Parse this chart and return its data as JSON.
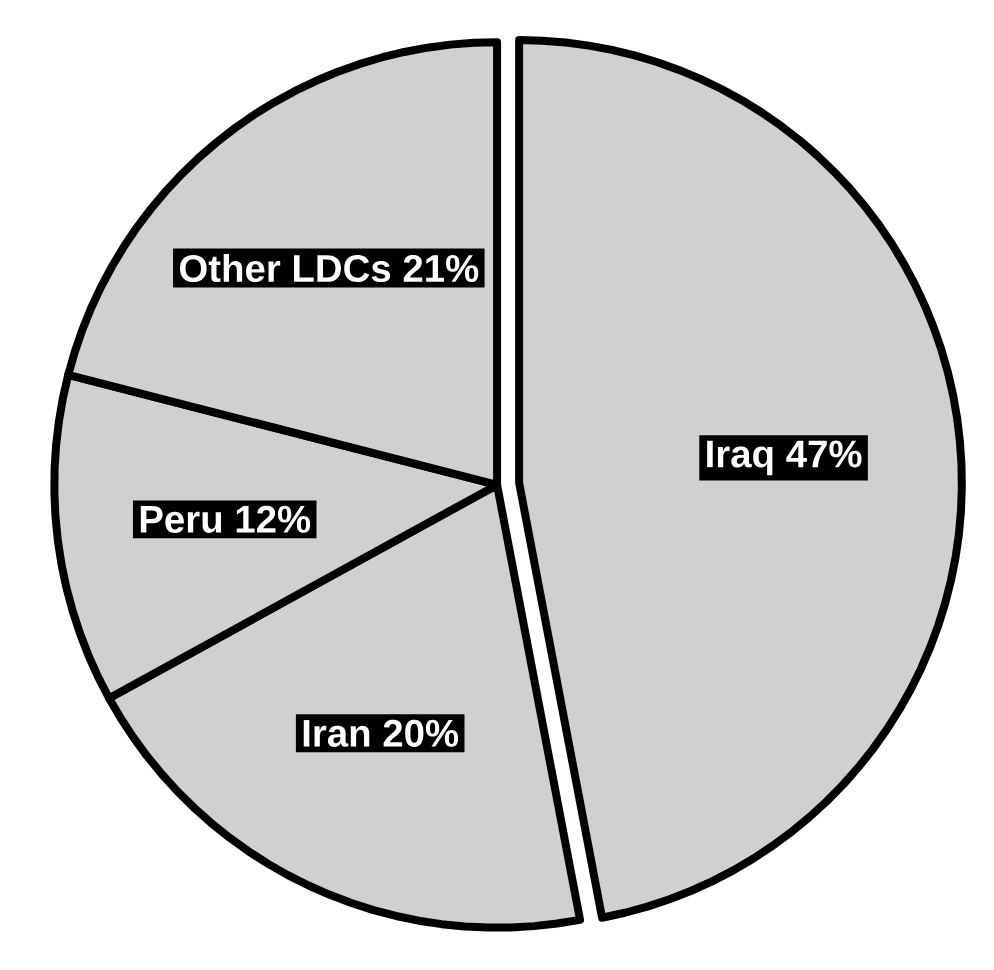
{
  "chart_data": {
    "type": "pie",
    "categories": [
      "Iraq",
      "Iran",
      "Peru",
      "Other LDCs"
    ],
    "values": [
      47,
      20,
      12,
      21
    ],
    "value_labels": [
      "47%",
      "20%",
      "12%",
      "21%"
    ],
    "colors": [
      "#d0d0d0",
      "#d0d0d0",
      "#d0d0d0",
      "#d0d0d0"
    ]
  }
}
